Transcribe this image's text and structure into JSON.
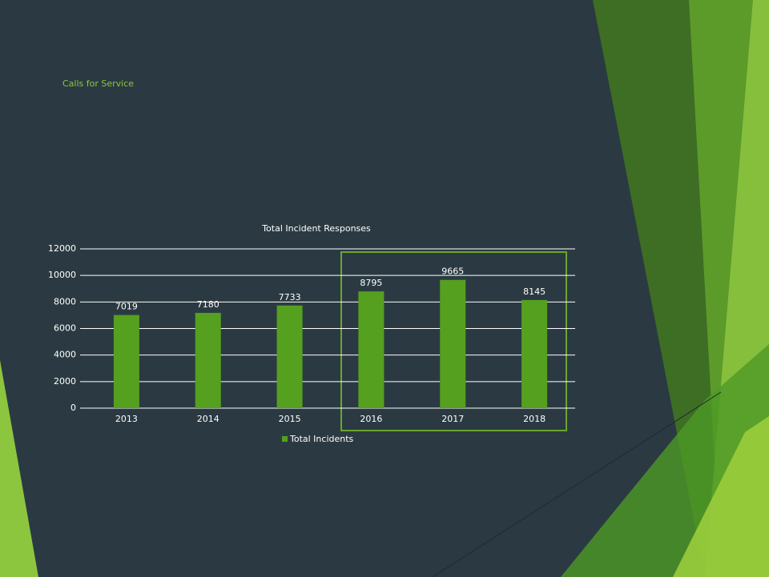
{
  "title": "Calls for Service",
  "chart_data": {
    "type": "bar",
    "title": "Total Incident Responses",
    "categories": [
      "2013",
      "2014",
      "2015",
      "2016",
      "2017",
      "2018"
    ],
    "series": [
      {
        "name": "Total Incidents",
        "color": "#55a01f",
        "values": [
          7019,
          7180,
          7733,
          8795,
          9665,
          8145
        ]
      }
    ],
    "ylim": [
      0,
      12000
    ],
    "yticks": [
      0,
      2000,
      4000,
      6000,
      8000,
      10000,
      12000
    ],
    "grid": true,
    "legend": "bottom"
  }
}
